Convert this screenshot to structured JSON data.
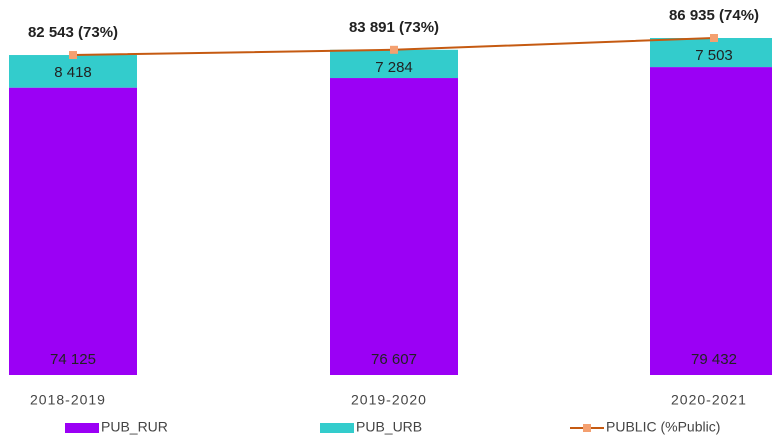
{
  "chart_data": {
    "type": "bar",
    "categories": [
      "2018-2019",
      "2019-2020",
      "2020-2021"
    ],
    "series": [
      {
        "name": "PUB_RUR",
        "color": "#9b00f5",
        "values": [
          74125,
          76607,
          79432
        ],
        "value_labels": [
          "74 125",
          "76 607",
          "79 432"
        ]
      },
      {
        "name": "PUB_URB",
        "color": "#33cccc",
        "values": [
          8418,
          7284,
          7503
        ],
        "value_labels": [
          "8 418",
          "7 284",
          "7 503"
        ]
      },
      {
        "name": "PUBLIC (%Public)",
        "type": "line",
        "color": "#c55a11",
        "marker_color": "#f4a070",
        "values": [
          82543,
          83891,
          86935
        ],
        "value_labels": [
          "82 543 (73%)",
          "83 891 (73%)",
          "86 935 (74%)"
        ]
      }
    ]
  }
}
